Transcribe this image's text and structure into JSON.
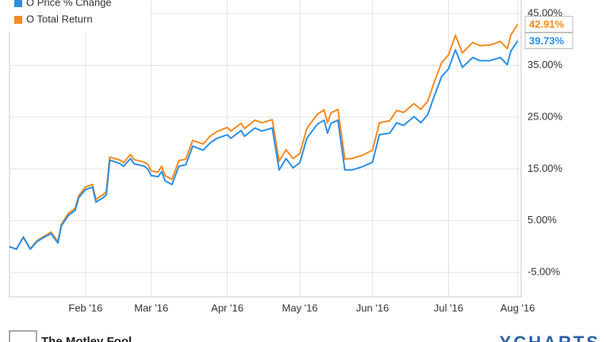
{
  "chart_data": {
    "type": "line",
    "x": [
      0,
      2,
      4,
      6,
      8,
      10,
      12,
      14,
      15,
      17,
      19,
      20,
      22,
      24,
      25,
      27,
      28,
      29,
      32,
      33,
      35,
      36,
      39,
      40,
      41,
      43,
      44,
      45,
      47,
      49,
      51,
      53,
      56,
      58,
      60,
      63,
      64,
      67,
      68,
      71,
      73,
      76,
      78,
      80,
      82,
      84,
      86,
      89,
      91,
      92,
      93,
      95,
      97,
      99,
      102,
      105,
      107,
      110,
      112,
      114,
      117,
      119,
      121,
      123,
      125,
      127,
      129,
      131,
      134,
      136,
      139,
      142,
      144,
      145,
      147
    ],
    "xlim": [
      0,
      148
    ],
    "xticks": [
      {
        "value": 22,
        "label": "Feb '16"
      },
      {
        "value": 41,
        "label": "Mar '16"
      },
      {
        "value": 63,
        "label": "Apr '16"
      },
      {
        "value": 84,
        "label": "May '16"
      },
      {
        "value": 105,
        "label": "Jun '16"
      },
      {
        "value": 127,
        "label": "Jul '16"
      },
      {
        "value": 147,
        "label": "Aug '16"
      }
    ],
    "ylim": [
      -9.7,
      47.6
    ],
    "yticks": [
      {
        "value": -5,
        "label": "-5.00%"
      },
      {
        "value": 5,
        "label": "5.00%"
      },
      {
        "value": 15,
        "label": "15.00%"
      },
      {
        "value": 25,
        "label": "25.00%"
      },
      {
        "value": 35,
        "label": "35.00%"
      },
      {
        "value": 45,
        "label": "45.00%"
      }
    ],
    "grid": true,
    "legend": "top-left",
    "series": [
      {
        "name": "O Price % Change",
        "color": "#2b8fe6",
        "end_label": "39.73%",
        "values": [
          0,
          -0.5,
          1.8,
          -0.5,
          1,
          1.8,
          2.5,
          0.7,
          4,
          6,
          7,
          9.4,
          11,
          11.5,
          8.6,
          9.4,
          10,
          16.7,
          16,
          15.5,
          17,
          16,
          15.5,
          15,
          13.7,
          13.5,
          14.5,
          12.7,
          12,
          15.5,
          15.8,
          19.4,
          18.6,
          20,
          20.9,
          21.6,
          20.9,
          22.4,
          21.3,
          22.9,
          22.3,
          22.9,
          14.8,
          17,
          15.2,
          16.2,
          20.9,
          23.6,
          24.4,
          21.9,
          23.8,
          24.4,
          14.8,
          14.8,
          15.4,
          16.3,
          21.6,
          21.9,
          23.9,
          23.4,
          25.1,
          23.9,
          25.5,
          29.3,
          32.8,
          34.3,
          38,
          34.6,
          36.5,
          35.9,
          35.9,
          36.5,
          35.1,
          37.7,
          39.73
        ]
      },
      {
        "name": "O Total Return",
        "color": "#f58a1f",
        "end_label": "42.91%",
        "values": [
          0,
          -0.5,
          1.9,
          -0.4,
          1.2,
          2.0,
          2.8,
          1.0,
          4.3,
          6.4,
          7.4,
          9.8,
          11.5,
          12.0,
          9.1,
          10.0,
          10.6,
          17.3,
          16.7,
          16.2,
          17.8,
          16.8,
          16.3,
          15.9,
          14.6,
          14.4,
          15.5,
          13.7,
          13.0,
          16.6,
          16.9,
          20.5,
          19.8,
          21.3,
          22.2,
          23.0,
          22.3,
          23.8,
          22.8,
          24.4,
          23.9,
          24.5,
          16.5,
          18.7,
          17.0,
          18.0,
          22.8,
          25.5,
          26.4,
          23.9,
          25.8,
          26.5,
          16.9,
          17.0,
          17.6,
          18.6,
          23.9,
          24.3,
          26.3,
          25.9,
          27.6,
          26.5,
          28.1,
          32.0,
          35.5,
          37.0,
          40.8,
          37.4,
          39.4,
          38.8,
          38.9,
          39.6,
          38.2,
          40.8,
          42.91
        ]
      }
    ],
    "footer_left": "The Motley Fool",
    "footer_right": "YCHARTS"
  }
}
